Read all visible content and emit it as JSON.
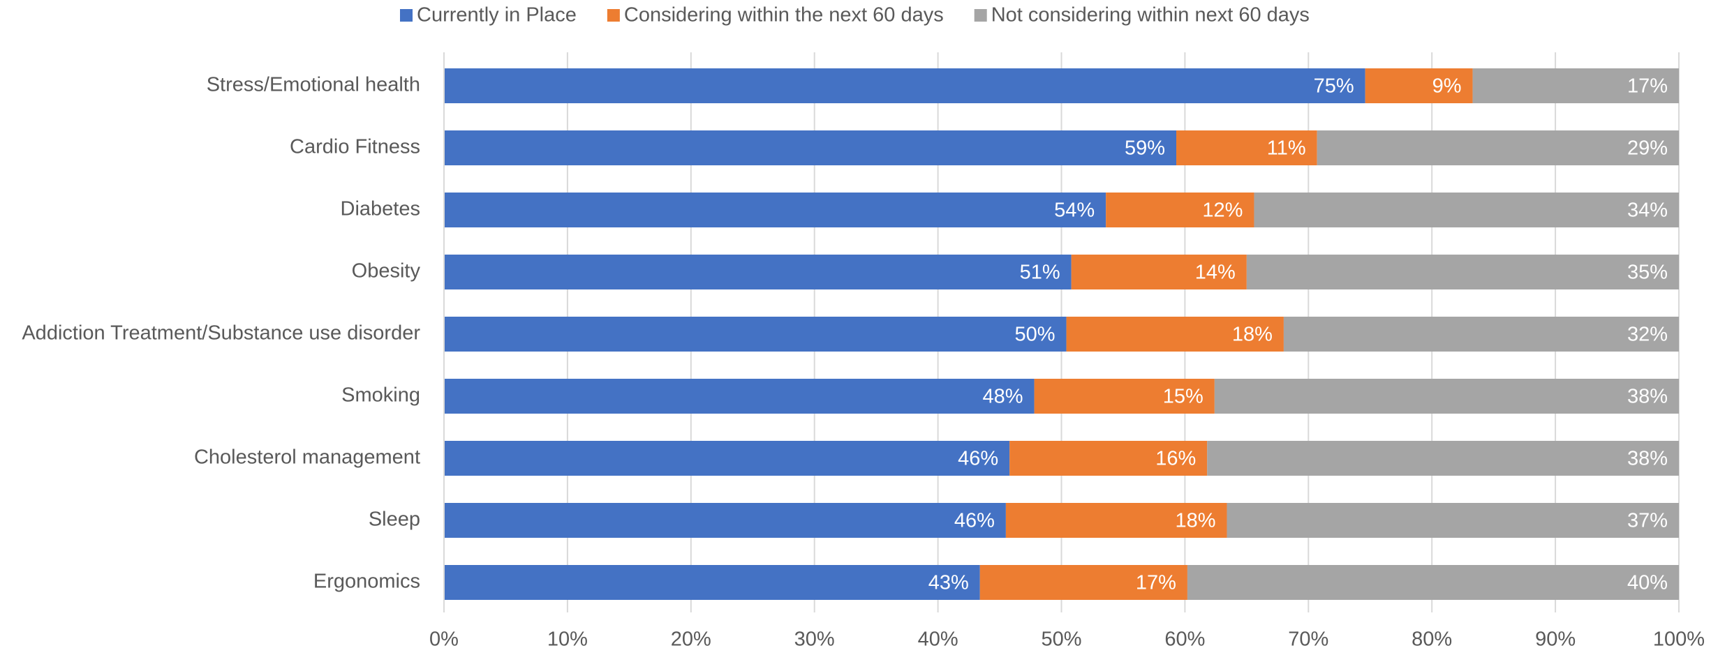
{
  "chart_data": {
    "type": "stacked_bar_horizontal",
    "categories": [
      "Stress/Emotional health",
      "Cardio Fitness",
      "Diabetes",
      "Obesity",
      "Addiction Treatment/Substance use disorder",
      "Smoking",
      "Cholesterol management",
      "Sleep",
      "Ergonomics"
    ],
    "series": [
      {
        "name": "Currently in Place",
        "color": "#4472c4",
        "values": [
          74.6,
          59.3,
          53.6,
          50.8,
          50.4,
          47.8,
          45.8,
          45.5,
          43.4
        ],
        "value_labels": [
          "75%",
          "59%",
          "54%",
          "51%",
          "50%",
          "48%",
          "46%",
          "46%",
          "43%"
        ]
      },
      {
        "name": "Considering within the next 60 days",
        "color": "#ed7d31",
        "values": [
          8.7,
          11.4,
          12.0,
          14.2,
          17.6,
          14.6,
          16.0,
          17.9,
          16.8
        ],
        "value_labels": [
          "9%",
          "11%",
          "12%",
          "14%",
          "18%",
          "15%",
          "16%",
          "18%",
          "17%"
        ]
      },
      {
        "name": "Not considering within next 60 days",
        "color": "#a5a5a5",
        "values": [
          16.7,
          29.3,
          34.4,
          35.0,
          32.0,
          37.6,
          38.2,
          36.6,
          39.8
        ],
        "value_labels": [
          "17%",
          "29%",
          "34%",
          "35%",
          "32%",
          "38%",
          "38%",
          "37%",
          "40%"
        ]
      }
    ],
    "xlim": [
      0,
      100
    ],
    "xticks": [
      {
        "value": 0,
        "label": "0%"
      },
      {
        "value": 10,
        "label": "10%"
      },
      {
        "value": 20,
        "label": "20%"
      },
      {
        "value": 30,
        "label": "30%"
      },
      {
        "value": 40,
        "label": "40%"
      },
      {
        "value": 50,
        "label": "50%"
      },
      {
        "value": 60,
        "label": "60%"
      },
      {
        "value": 70,
        "label": "70%"
      },
      {
        "value": 80,
        "label": "80%"
      },
      {
        "value": 90,
        "label": "90%"
      },
      {
        "value": 100,
        "label": "100%"
      }
    ],
    "grid": true,
    "legend": "top"
  }
}
